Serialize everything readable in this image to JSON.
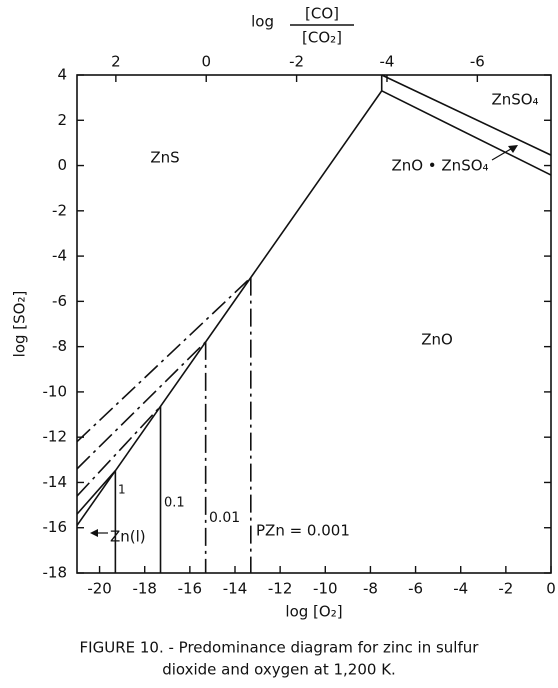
{
  "chart_data": {
    "type": "line",
    "xlabel": "log [O₂]",
    "ylabel": "log [SO₂]",
    "x2label": {
      "prefix": "log",
      "numerator": "[CO]",
      "denominator": "[CO₂]"
    },
    "caption": [
      "FIGURE 10. - Predominance diagram for zinc in sulfur",
      "dioxide and oxygen at 1,200 K."
    ],
    "xlim": [
      -21,
      0
    ],
    "xticks": [
      -20,
      -18,
      -16,
      -14,
      -12,
      -10,
      -8,
      -6,
      -4,
      -2,
      0
    ],
    "ylim": [
      -18,
      4
    ],
    "yticks": [
      -18,
      -16,
      -14,
      -12,
      -10,
      -8,
      -6,
      -4,
      -2,
      0,
      2,
      4
    ],
    "x2lim": [
      2.86,
      -7.63
    ],
    "x2ticks": [
      2,
      0,
      -2,
      -4,
      -6
    ],
    "color": "#111111",
    "series": [
      {
        "style": "solid",
        "x": [
          -21,
          -7.5
        ],
        "values": [
          -15.9,
          3.3
        ]
      },
      {
        "style": "solid",
        "x": [
          -7.5,
          -7.5
        ],
        "values": [
          3.3,
          4
        ]
      },
      {
        "style": "solid",
        "x": [
          -7.5,
          0
        ],
        "values": [
          4,
          0.46
        ]
      },
      {
        "style": "solid",
        "x": [
          -7.5,
          0
        ],
        "values": [
          3.3,
          -0.42
        ]
      },
      {
        "style": "dashed",
        "x": [
          -21,
          -13.3
        ],
        "values": [
          -12.2,
          -4.95
        ]
      },
      {
        "style": "dashed",
        "x": [
          -13.3,
          -13.3
        ],
        "values": [
          -4.95,
          -18
        ]
      },
      {
        "style": "dashed",
        "x": [
          -21,
          -15.3
        ],
        "values": [
          -13.4,
          -7.79
        ]
      },
      {
        "style": "dashed",
        "x": [
          -15.3,
          -15.3
        ],
        "values": [
          -7.79,
          -18
        ]
      },
      {
        "style": "dashed",
        "x": [
          -21,
          -17.3
        ],
        "values": [
          -14.6,
          -10.64
        ]
      },
      {
        "style": "solid",
        "x": [
          -17.3,
          -17.3
        ],
        "values": [
          -10.64,
          -18
        ]
      },
      {
        "style": "solid",
        "x": [
          -21,
          -19.3
        ],
        "values": [
          -15.4,
          -13.48
        ]
      },
      {
        "style": "solid",
        "x": [
          -19.3,
          -19.3
        ],
        "values": [
          -13.48,
          -18
        ]
      }
    ],
    "annotations": [
      "ZnS",
      "ZnO",
      "ZnSO₄",
      "ZnO • ZnSO₄",
      "Zn(l)",
      "1",
      "0.1",
      "0.01",
      "PZn = 0.001"
    ]
  }
}
